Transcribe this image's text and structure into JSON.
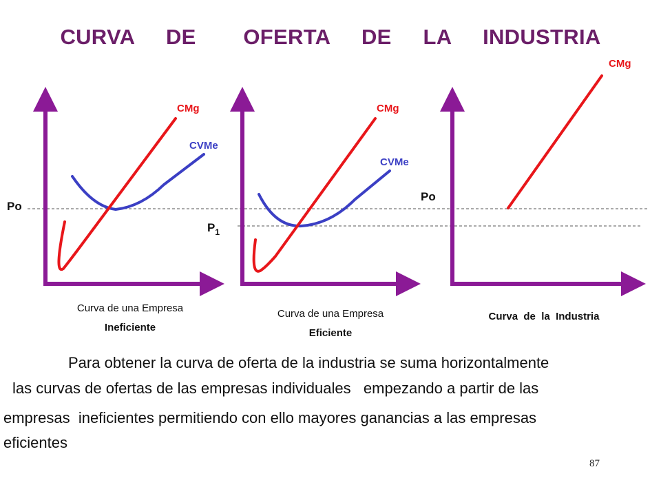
{
  "title": "CURVA  DE   OFERTA  DE  LA  INDUSTRIA",
  "colors": {
    "title": "#6b1e68",
    "axis": "#8b1a96",
    "cmg": "#e8161a",
    "cvme": "#3b3fc4",
    "price_line": "#555555"
  },
  "panels": [
    {
      "cmg_label": "CMg",
      "cvme_label": "CVMe",
      "caption_line1": "Curva de una Empresa",
      "caption_line2": "Ineficiente"
    },
    {
      "cmg_label": "CMg",
      "cvme_label": "CVMe",
      "caption_line1": "Curva de una Empresa",
      "caption_line2": "Eficiente"
    },
    {
      "cmg_label": "CMg",
      "caption": "Curva  de  la  Industria"
    }
  ],
  "price_labels": {
    "po_left": "Po",
    "p1": "P",
    "p1_sub": "1",
    "po_right": "Po"
  },
  "paragraph": {
    "line1": "Para obtener la curva de oferta de la industria se suma horizontalmente",
    "line2": "las curvas de ofertas de las empresas individuales   empezando a partir de las",
    "line3": "empresas  ineficientes permitiendo con ello mayores ganancias a las empresas",
    "line4": "eficientes"
  },
  "page_number": "87"
}
